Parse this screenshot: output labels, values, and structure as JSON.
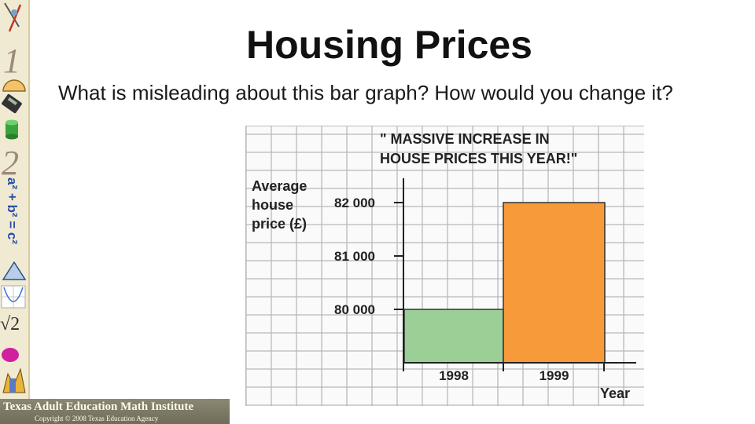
{
  "slide": {
    "title": "Housing Prices",
    "question": "What is misleading about this bar graph? How would you change it?"
  },
  "footer": {
    "institute": "Texas Adult Education Math Institute",
    "copyright": "Copyright © 2008 Texas Education Agency"
  },
  "sidebar": {
    "numerals": [
      "1",
      "2"
    ],
    "formula": "a² + b² = c²",
    "root": "√2",
    "icons": [
      "compass-icon",
      "protractor-icon",
      "calculator-icon",
      "cylinder-icon",
      "triangle-icon",
      "parabola-graph-icon",
      "sphere-icon",
      "building-icon"
    ]
  },
  "chart_data": {
    "type": "bar",
    "title_lines": [
      "\" MASSIVE INCREASE  IN",
      "HOUSE PRICES THIS YEAR!\""
    ],
    "ylabel_lines": [
      "Average",
      "house",
      "price (£)"
    ],
    "xlabel": "Year",
    "categories": [
      "1998",
      "1999"
    ],
    "values": [
      80000,
      82000
    ],
    "yticks": [
      80000,
      81000,
      82000
    ],
    "ytick_labels": [
      "80 000",
      "81 000",
      "82 000"
    ],
    "ylim": [
      79000,
      82300
    ],
    "colors": [
      "#9ccf96",
      "#f79a3a"
    ],
    "grid": true,
    "legend": "none"
  }
}
